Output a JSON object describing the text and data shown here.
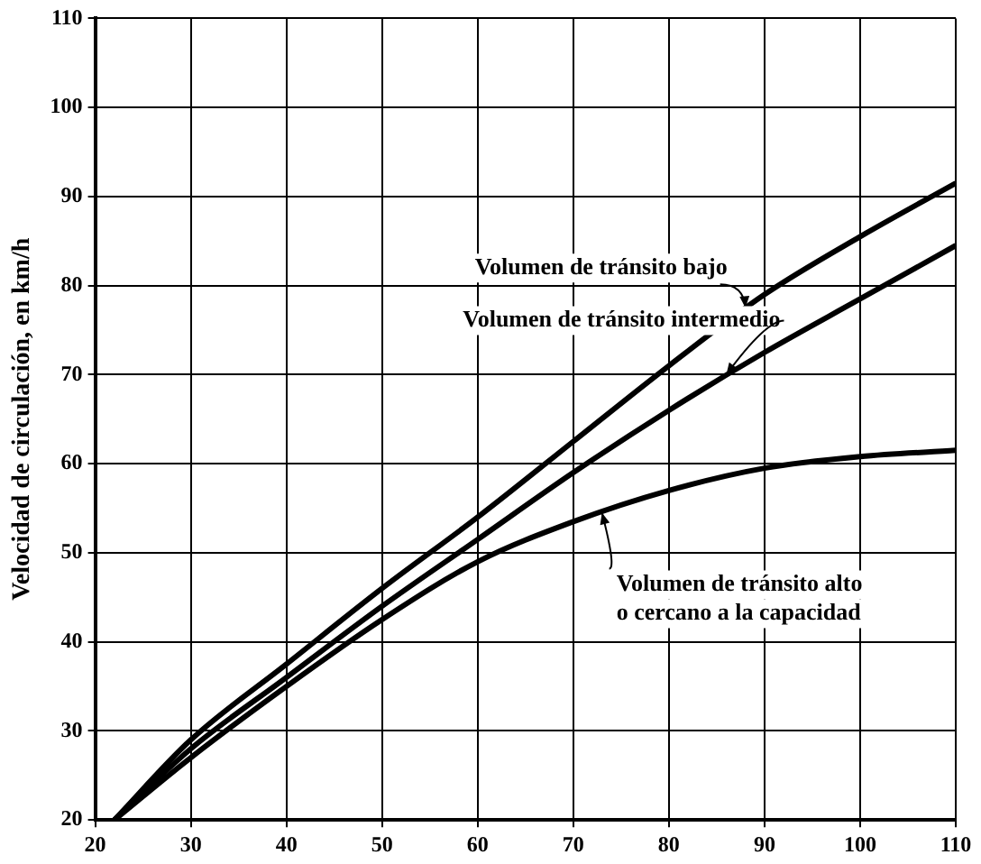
{
  "chart_data": {
    "type": "line",
    "ylabel": "Velocidad de circulación, en km/h",
    "x": [
      22,
      30,
      40,
      50,
      60,
      70,
      80,
      90,
      100,
      110
    ],
    "series": [
      {
        "color": "#000000",
        "values": [
          20,
          29,
          37.5,
          46,
          54,
          62.5,
          71,
          79,
          85.5,
          91.5
        ]
      },
      {
        "color": "#000000",
        "values": [
          20,
          28,
          36,
          44,
          51.5,
          59,
          66,
          72.5,
          78.5,
          84.5
        ]
      },
      {
        "color": "#000000",
        "values": [
          20,
          27,
          35,
          42.5,
          49,
          53.5,
          57,
          59.5,
          60.8,
          61.5
        ]
      }
    ],
    "xlim": [
      20,
      110
    ],
    "xticks": [
      20,
      30,
      40,
      50,
      60,
      70,
      80,
      90,
      100,
      110
    ],
    "ylim": [
      20,
      110
    ],
    "yticks": [
      20,
      30,
      40,
      50,
      60,
      70,
      80,
      90,
      100,
      110
    ],
    "grid": true,
    "legend": false,
    "marker": "none",
    "line_style": "solid",
    "annotations": [
      {
        "text": "Volumen de tránsito bajo",
        "x": 88,
        "y": 77.5
      },
      {
        "text": "Volumen de tránsito intermedio",
        "x": 86,
        "y": 70
      },
      {
        "text": "Volumen de tránsito alto\no cercano a la capacidad",
        "x": 73,
        "y": 54.5
      }
    ]
  }
}
